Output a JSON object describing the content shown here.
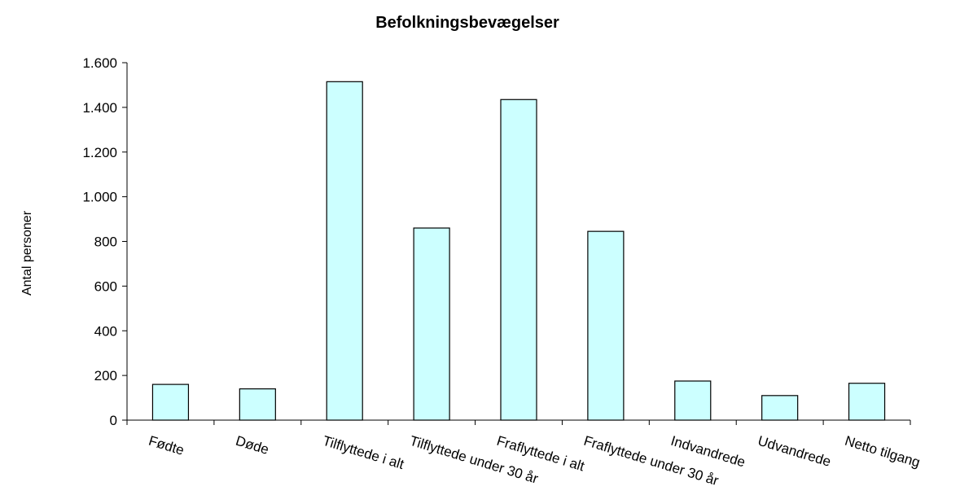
{
  "chart_data": {
    "type": "bar",
    "title": "Befolkningsbevægelser",
    "ylabel": "Antal personer",
    "xlabel": "",
    "categories": [
      "Fødte",
      "Døde",
      "Tilflyttede i alt",
      "Tilflyttede under 30 år",
      "Fraflyttede i alt",
      "Fraflyttede under 30 år",
      "Indvandrede",
      "Udvandrede",
      "Netto tilgang"
    ],
    "values": [
      160,
      140,
      1515,
      860,
      1435,
      845,
      175,
      110,
      165
    ],
    "ylim": [
      0,
      1600
    ],
    "yticks": [
      0,
      200,
      400,
      600,
      800,
      1000,
      1200,
      1400,
      1600
    ],
    "ytick_labels": [
      "0",
      "200",
      "400",
      "600",
      "800",
      "1.000",
      "1.200",
      "1.400",
      "1.600"
    ],
    "bar_color": "#ccffff",
    "grid": false,
    "legend": false
  }
}
